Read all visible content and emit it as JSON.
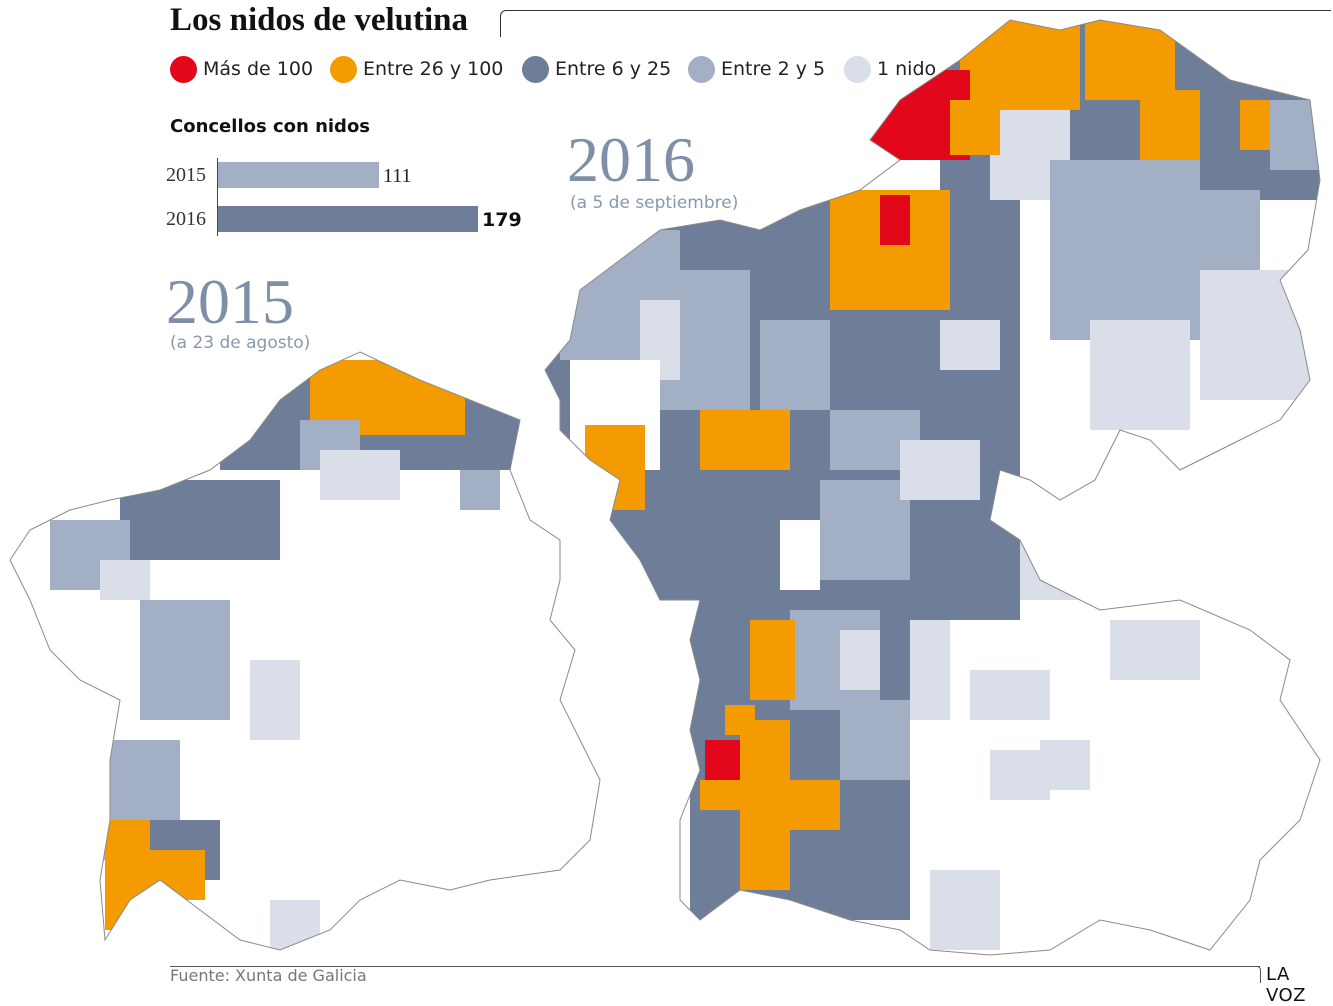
{
  "title": "Los nidos de velutina",
  "legend": [
    {
      "label": "Más de 100",
      "color": "#e3071b"
    },
    {
      "label": "Entre 26 y 100",
      "color": "#f39b00"
    },
    {
      "label": "Entre 6 y 25",
      "color": "#6e7e99"
    },
    {
      "label": "Entre 2 y 5",
      "color": "#a3afc5"
    },
    {
      "label": "1 nido",
      "color": "#d9dee9"
    }
  ],
  "chart_data": {
    "type": "bar",
    "title": "Concellos con nidos",
    "categories": [
      "2015",
      "2016"
    ],
    "values": [
      111,
      179
    ],
    "value_labels": [
      "111",
      "179"
    ],
    "colors": [
      "#a3afc5",
      "#6e7e99"
    ]
  },
  "maps": {
    "y2015": {
      "year": "2015",
      "date": "(a 23 de agosto)"
    },
    "y2016": {
      "year": "2016",
      "date": "(a 5 de septiembre)"
    }
  },
  "footer": {
    "source": "Fuente: Xunta de Galicia",
    "brand": "LA VOZ"
  }
}
